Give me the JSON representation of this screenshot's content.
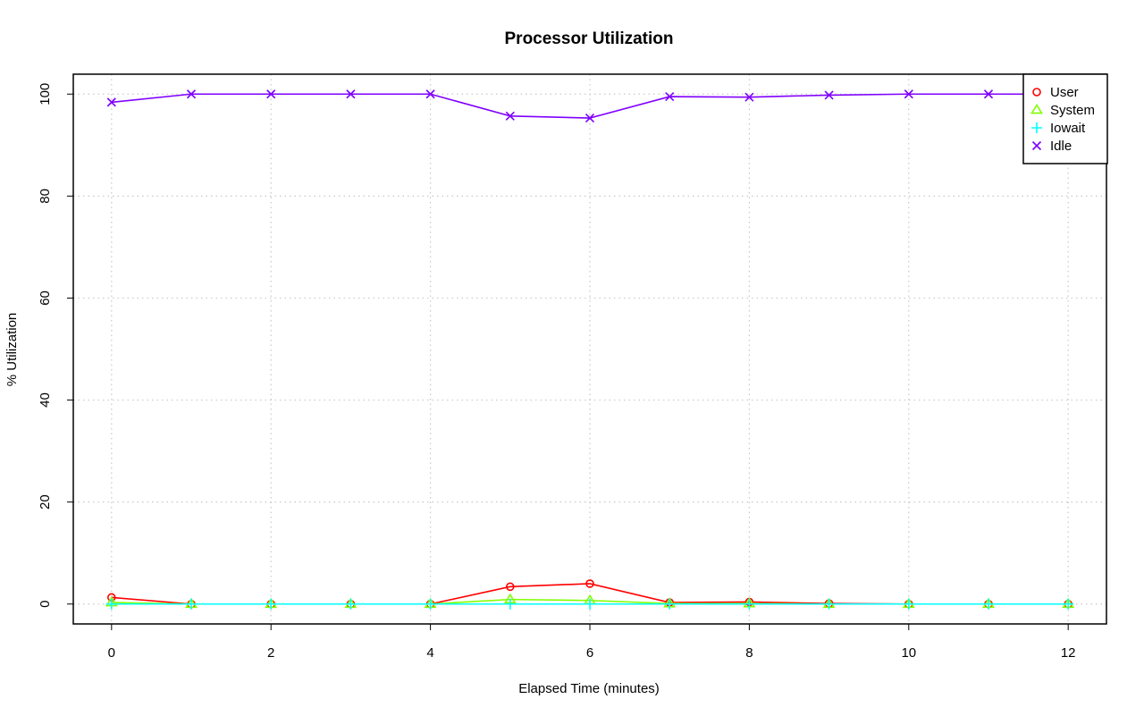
{
  "chart_data": {
    "type": "line",
    "title": "Processor Utilization",
    "xlabel": "Elapsed Time (minutes)",
    "ylabel": "% Utilization",
    "xlim": [
      -0.48,
      12.48
    ],
    "ylim": [
      -3.9,
      103.9
    ],
    "xticks": [
      0,
      2,
      4,
      6,
      8,
      10,
      12
    ],
    "yticks": [
      0,
      20,
      40,
      60,
      80,
      100
    ],
    "grid": true,
    "legend_position": "top-right",
    "x": [
      0,
      1,
      2,
      3,
      4,
      5,
      6,
      7,
      8,
      9,
      10,
      11,
      12
    ],
    "series": [
      {
        "name": "User",
        "color": "#ff0000",
        "marker": "circle",
        "values": [
          1.3,
          0.0,
          0.0,
          0.0,
          0.0,
          3.4,
          4.0,
          0.3,
          0.4,
          0.1,
          0.0,
          0.0,
          0.0
        ]
      },
      {
        "name": "System",
        "color": "#80ff00",
        "marker": "triangle",
        "values": [
          0.3,
          0.0,
          0.0,
          0.0,
          0.0,
          0.9,
          0.7,
          0.1,
          0.1,
          0.0,
          0.0,
          0.0,
          0.0
        ]
      },
      {
        "name": "Iowait",
        "color": "#00ffff",
        "marker": "plus",
        "values": [
          0.0,
          0.0,
          0.0,
          0.0,
          0.0,
          0.0,
          0.0,
          0.0,
          0.0,
          0.0,
          0.0,
          0.0,
          0.0
        ]
      },
      {
        "name": "Idle",
        "color": "#8000ff",
        "marker": "cross",
        "values": [
          98.4,
          100.0,
          100.0,
          100.0,
          100.0,
          95.7,
          95.3,
          99.5,
          99.4,
          99.8,
          100.0,
          100.0,
          100.0
        ]
      }
    ]
  }
}
